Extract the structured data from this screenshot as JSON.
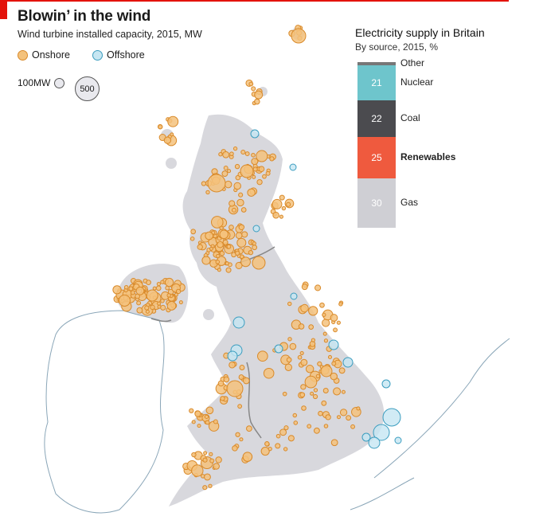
{
  "header": {
    "title": "Blowin’ in the wind",
    "subtitle": "Wind turbine installed capacity, 2015, MW"
  },
  "legend": {
    "onshore_label": "Onshore",
    "offshore_label": "Offshore",
    "onshore_color": "#f4c27c",
    "offshore_color": "#c6e6f2",
    "size_small_label": "100MW",
    "size_big_label": "500"
  },
  "supply": {
    "title": "Electricity supply in Britain",
    "subtitle": "By source, 2015, %",
    "segments": [
      {
        "label": "Other",
        "value": "",
        "share": 2,
        "color": "#777777",
        "bold": false
      },
      {
        "label": "Nuclear",
        "value": "21",
        "share": 21,
        "color": "#6ec5cc",
        "bold": false
      },
      {
        "label": "Coal",
        "value": "22",
        "share": 22,
        "color": "#4b4b4f",
        "bold": false
      },
      {
        "label": "Renewables",
        "value": "25",
        "share": 25,
        "color": "#ef5a3e",
        "bold": true
      },
      {
        "label": "Gas",
        "value": "30",
        "share": 30,
        "color": "#cfcfd4",
        "bold": false
      }
    ]
  }
}
